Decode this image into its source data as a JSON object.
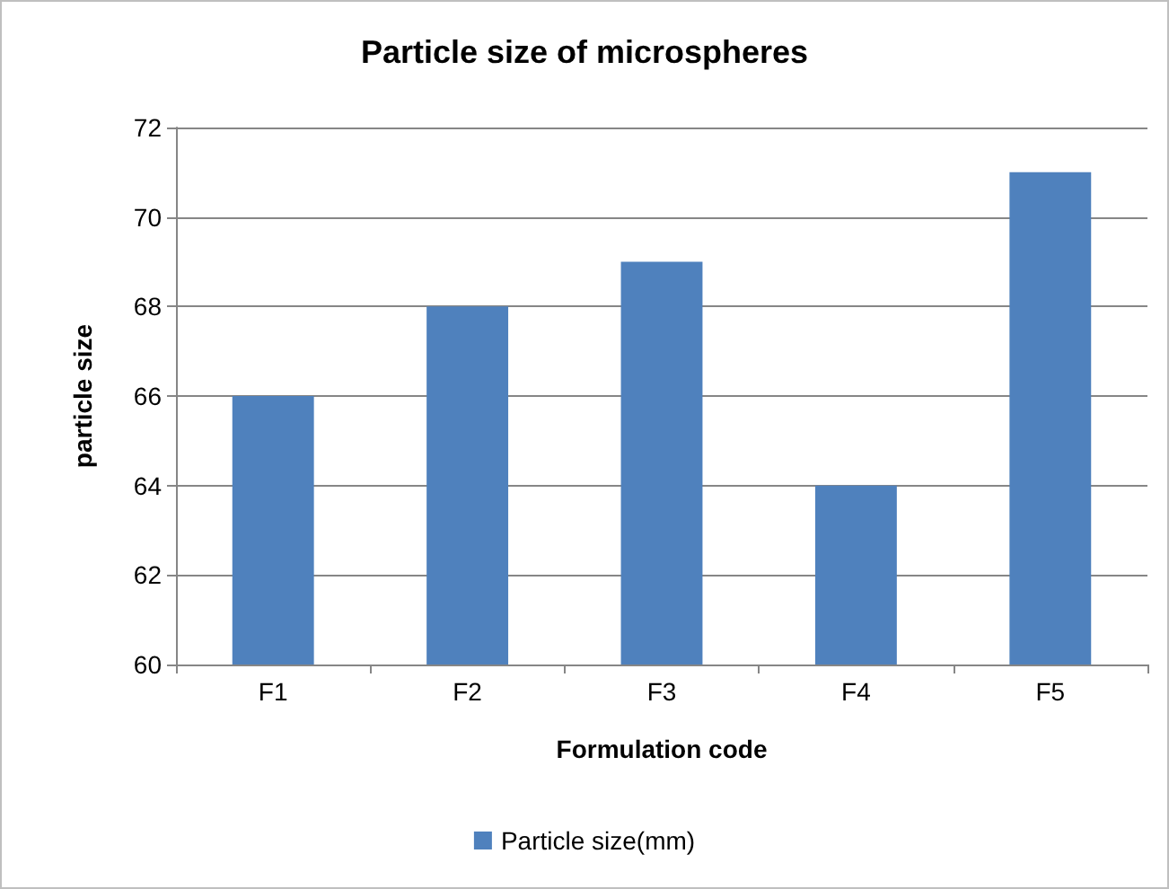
{
  "chart_data": {
    "type": "bar",
    "title": "Particle size of microspheres",
    "xlabel": "Formulation code",
    "ylabel": "particle size",
    "categories": [
      "F1",
      "F2",
      "F3",
      "F4",
      "F5"
    ],
    "series": [
      {
        "name": "Particle size(mm)",
        "color": "#4f81bd",
        "values": [
          66,
          68,
          69,
          64,
          71
        ]
      }
    ],
    "ylim": [
      60,
      72
    ],
    "yticks": [
      60,
      62,
      64,
      66,
      68,
      70,
      72
    ],
    "grid": "y",
    "legend": "bottom"
  }
}
